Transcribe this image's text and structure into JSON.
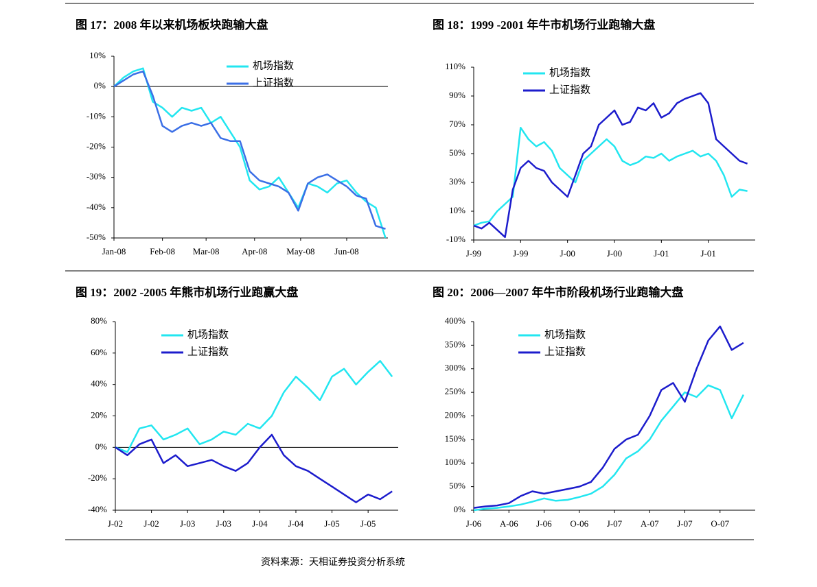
{
  "chart_data": [
    {
      "type": "line",
      "title": "图 17：2008 年以来机场板块跑输大盘",
      "x": [
        0,
        4,
        8,
        12,
        16,
        20,
        24,
        28,
        32,
        36,
        40,
        44,
        48,
        52,
        56,
        60,
        64,
        68,
        72,
        76,
        80,
        84,
        88,
        92,
        96,
        100,
        104,
        108,
        112
      ],
      "xlim": [
        0,
        113
      ],
      "xticks": [
        {
          "value": 0,
          "label": "Jan-08"
        },
        {
          "value": 20,
          "label": "Feb-08"
        },
        {
          "value": 38,
          "label": "Mar-08"
        },
        {
          "value": 58,
          "label": "Apr-08"
        },
        {
          "value": 77,
          "label": "May-08"
        },
        {
          "value": 96,
          "label": "Jun-08"
        }
      ],
      "ylim": [
        -50,
        10
      ],
      "yticks": [
        {
          "value": -50,
          "label": "-50%"
        },
        {
          "value": -40,
          "label": "-40%"
        },
        {
          "value": -30,
          "label": "-30%"
        },
        {
          "value": -20,
          "label": "-20%"
        },
        {
          "value": -10,
          "label": "-10%"
        },
        {
          "value": 0,
          "label": "0%"
        },
        {
          "value": 10,
          "label": "10%"
        }
      ],
      "zero_line": true,
      "legend": "top",
      "series": [
        {
          "name": "机场指数",
          "color": "#22e6f0",
          "values": [
            0,
            3,
            5,
            6,
            -5,
            -7,
            -10,
            -7,
            -8,
            -7,
            -12,
            -10,
            -15,
            -20,
            -31,
            -34,
            -33,
            -30,
            -35,
            -40,
            -32,
            -33,
            -35,
            -32,
            -31,
            -35,
            -38,
            -40,
            -50
          ]
        },
        {
          "name": "上证指数",
          "color": "#3b6fe6",
          "values": [
            0,
            2,
            4,
            5,
            -3,
            -13,
            -15,
            -13,
            -12,
            -13,
            -12,
            -17,
            -18,
            -18,
            -28,
            -31,
            -32,
            -33,
            -35,
            -41,
            -32,
            -30,
            -29,
            -31,
            -33,
            -36,
            -37,
            -46,
            -47
          ]
        }
      ]
    },
    {
      "type": "line",
      "title": "图 18：1999 -2001 年牛市机场行业跑输大盘",
      "x": [
        0,
        1,
        2,
        3,
        4,
        5,
        6,
        7,
        8,
        9,
        10,
        11,
        12,
        13,
        14,
        15,
        16,
        17,
        18,
        19,
        20,
        21,
        22,
        23,
        24,
        25,
        26,
        27,
        28,
        29,
        30,
        31,
        32,
        33,
        34,
        35
      ],
      "xlim": [
        0,
        36
      ],
      "xticks": [
        {
          "value": 0,
          "label": "J-99"
        },
        {
          "value": 6,
          "label": "J-99"
        },
        {
          "value": 12,
          "label": "J-00"
        },
        {
          "value": 18,
          "label": "J-00"
        },
        {
          "value": 24,
          "label": "J-01"
        },
        {
          "value": 30,
          "label": "J-01"
        }
      ],
      "ylim": [
        -10,
        110
      ],
      "yticks": [
        {
          "value": -10,
          "label": "-10%"
        },
        {
          "value": 10,
          "label": "10%"
        },
        {
          "value": 30,
          "label": "30%"
        },
        {
          "value": 50,
          "label": "50%"
        },
        {
          "value": 70,
          "label": "70%"
        },
        {
          "value": 90,
          "label": "90%"
        },
        {
          "value": 110,
          "label": "110%"
        }
      ],
      "zero_line": false,
      "legend": "top",
      "series": [
        {
          "name": "机场指数",
          "color": "#22e6f0",
          "values": [
            0,
            2,
            3,
            10,
            15,
            20,
            68,
            60,
            55,
            58,
            52,
            40,
            35,
            30,
            45,
            50,
            55,
            60,
            55,
            45,
            42,
            44,
            48,
            47,
            50,
            45,
            48,
            50,
            52,
            48,
            50,
            45,
            35,
            20,
            25,
            24
          ]
        },
        {
          "name": "上证指数",
          "color": "#1c1ccc",
          "values": [
            0,
            -2,
            2,
            -3,
            -8,
            25,
            40,
            45,
            40,
            38,
            30,
            25,
            20,
            35,
            50,
            55,
            70,
            75,
            80,
            70,
            72,
            82,
            80,
            85,
            75,
            78,
            85,
            88,
            90,
            92,
            85,
            60,
            55,
            50,
            45,
            43
          ]
        }
      ]
    },
    {
      "type": "line",
      "title": "图 19：2002 -2005 年熊市机场行业跑赢大盘",
      "x": [
        0,
        2,
        4,
        6,
        8,
        10,
        12,
        14,
        16,
        18,
        20,
        22,
        24,
        26,
        28,
        30,
        32,
        34,
        36,
        38,
        40,
        42,
        44,
        46
      ],
      "xlim": [
        0,
        47
      ],
      "xticks": [
        {
          "value": 0,
          "label": "J-02"
        },
        {
          "value": 6,
          "label": "J-02"
        },
        {
          "value": 12,
          "label": "J-03"
        },
        {
          "value": 18,
          "label": "J-03"
        },
        {
          "value": 24,
          "label": "J-04"
        },
        {
          "value": 30,
          "label": "J-04"
        },
        {
          "value": 36,
          "label": "J-05"
        },
        {
          "value": 42,
          "label": "J-05"
        }
      ],
      "ylim": [
        -40,
        80
      ],
      "yticks": [
        {
          "value": -40,
          "label": "-40%"
        },
        {
          "value": -20,
          "label": "-20%"
        },
        {
          "value": 0,
          "label": "0%"
        },
        {
          "value": 20,
          "label": "20%"
        },
        {
          "value": 40,
          "label": "40%"
        },
        {
          "value": 60,
          "label": "60%"
        },
        {
          "value": 80,
          "label": "80%"
        }
      ],
      "zero_line": true,
      "legend": "top",
      "series": [
        {
          "name": "机场指数",
          "color": "#22e6f0",
          "values": [
            0,
            -3,
            12,
            14,
            5,
            8,
            12,
            2,
            5,
            10,
            8,
            15,
            12,
            20,
            35,
            45,
            38,
            30,
            45,
            50,
            40,
            48,
            55,
            45
          ]
        },
        {
          "name": "上证指数",
          "color": "#1c1ccc",
          "values": [
            0,
            -5,
            2,
            5,
            -10,
            -5,
            -12,
            -10,
            -8,
            -12,
            -15,
            -10,
            0,
            8,
            -5,
            -12,
            -15,
            -20,
            -25,
            -30,
            -35,
            -30,
            -33,
            -28
          ]
        }
      ]
    },
    {
      "type": "line",
      "title": "图 20：2006—2007 年牛市阶段机场行业跑输大盘",
      "x": [
        0,
        1,
        2,
        3,
        4,
        5,
        6,
        7,
        8,
        9,
        10,
        11,
        12,
        13,
        14,
        15,
        16,
        17,
        18,
        19,
        20,
        21,
        22,
        23
      ],
      "xlim": [
        0,
        24
      ],
      "xticks": [
        {
          "value": 0,
          "label": "J-06"
        },
        {
          "value": 3,
          "label": "A-06"
        },
        {
          "value": 6,
          "label": "J-06"
        },
        {
          "value": 9,
          "label": "O-06"
        },
        {
          "value": 12,
          "label": "J-07"
        },
        {
          "value": 15,
          "label": "A-07"
        },
        {
          "value": 18,
          "label": "J-07"
        },
        {
          "value": 21,
          "label": "O-07"
        }
      ],
      "ylim": [
        0,
        400
      ],
      "yticks": [
        {
          "value": 0,
          "label": "0%"
        },
        {
          "value": 50,
          "label": "50%"
        },
        {
          "value": 100,
          "label": "100%"
        },
        {
          "value": 150,
          "label": "150%"
        },
        {
          "value": 200,
          "label": "200%"
        },
        {
          "value": 250,
          "label": "250%"
        },
        {
          "value": 300,
          "label": "300%"
        },
        {
          "value": 350,
          "label": "350%"
        },
        {
          "value": 400,
          "label": "400%"
        }
      ],
      "zero_line": false,
      "legend": "top",
      "series": [
        {
          "name": "机场指数",
          "color": "#22e6f0",
          "values": [
            0,
            3,
            5,
            8,
            12,
            18,
            25,
            20,
            22,
            28,
            35,
            50,
            75,
            110,
            125,
            150,
            190,
            220,
            250,
            240,
            265,
            255,
            195,
            245
          ]
        },
        {
          "name": "上证指数",
          "color": "#1c1ccc",
          "values": [
            5,
            8,
            10,
            15,
            30,
            40,
            35,
            40,
            45,
            50,
            60,
            90,
            130,
            150,
            160,
            200,
            255,
            270,
            230,
            300,
            360,
            390,
            340,
            355
          ]
        }
      ]
    }
  ],
  "source": "资料来源：天相证券投资分析系统"
}
